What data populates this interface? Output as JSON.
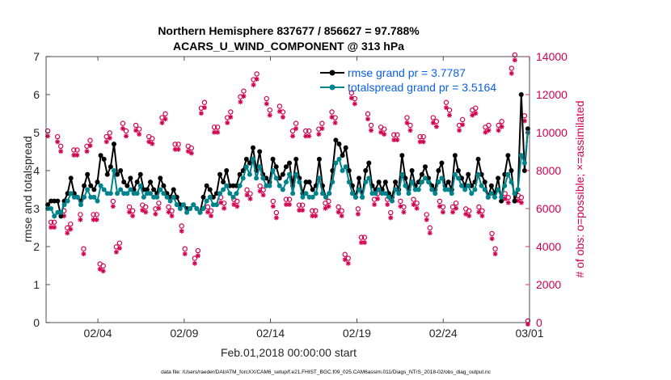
{
  "chart_data": {
    "type": "line",
    "title": [
      "Northern Hemisphere 837677 / 856627 = 97.788%",
      "ACARS_U_WIND_COMPONENT @ 313 hPa"
    ],
    "xlabel": "Feb.01,2018 00:00:00 start",
    "ylabel_left": "rmse and totalspread",
    "ylabel_right": "# of obs: o=possible; ×=assimilated",
    "footnote": "data file: /Users/raeder/DAI/ATM_forcXX/CAM6_setup/f.e21.FHIST_BGC.f09_025.CAM6assim.011/Diags_NTrS_2018-02/obs_diag_output.nc",
    "x_range": [
      1,
      29
    ],
    "x_ticks": [
      {
        "x": 4,
        "label": "02/04"
      },
      {
        "x": 9,
        "label": "02/09"
      },
      {
        "x": 14,
        "label": "02/14"
      },
      {
        "x": 19,
        "label": "02/19"
      },
      {
        "x": 24,
        "label": "02/24"
      },
      {
        "x": 29,
        "label": "03/01"
      }
    ],
    "y_left": {
      "range": [
        0,
        7
      ],
      "ticks": [
        "0",
        "1",
        "2",
        "3",
        "4",
        "5",
        "6",
        "7"
      ]
    },
    "y_right": {
      "range": [
        0,
        14000
      ],
      "ticks": [
        "0",
        "2000",
        "4000",
        "6000",
        "8000",
        "10000",
        "12000",
        "14000"
      ]
    },
    "series": [
      {
        "name": "rmse grand pr = 3.7787",
        "axis": "left",
        "color": "#000000",
        "marker": "filled-circle",
        "values": [
          3.1,
          3.2,
          3.2,
          3.2,
          2.8,
          3.2,
          3.4,
          3.8,
          3.4,
          3.3,
          3.2,
          3.6,
          3.9,
          3.6,
          3.5,
          3.7,
          4.4,
          4.3,
          3.9,
          4.1,
          4.7,
          3.9,
          4.0,
          3.7,
          3.6,
          3.8,
          3.5,
          3.7,
          3.9,
          3.5,
          3.5,
          3.7,
          3.5,
          3.4,
          3.8,
          3.6,
          3.4,
          3.3,
          3.5,
          3.3,
          3.1,
          3.1,
          3.0,
          3.0,
          3.1,
          3.0,
          2.9,
          3.3,
          3.6,
          3.5,
          3.3,
          3.4,
          3.9,
          3.7,
          4.0,
          3.6,
          3.6,
          3.6,
          3.9,
          4.0,
          4.3,
          4.2,
          4.6,
          4.0,
          4.5,
          3.9,
          3.8,
          3.7,
          4.3,
          4.1,
          3.8,
          3.9,
          4.1,
          4.2,
          3.6,
          4.3,
          3.8,
          3.4,
          3.7,
          3.7,
          3.5,
          3.6,
          4.3,
          3.6,
          3.3,
          3.4,
          4.0,
          4.8,
          4.7,
          4.4,
          4.6,
          4.0,
          3.6,
          3.3,
          3.8,
          3.3,
          4.0,
          4.2,
          3.6,
          3.5,
          3.7,
          3.5,
          3.7,
          3.4,
          3.3,
          3.7,
          3.5,
          4.4,
          3.8,
          3.5,
          4.0,
          3.6,
          3.7,
          3.9,
          4.1,
          3.8,
          3.6,
          3.5,
          4.0,
          4.2,
          3.6,
          3.7,
          3.5,
          4.4,
          4.0,
          3.8,
          3.6,
          3.9,
          3.6,
          3.7,
          4.3,
          3.9,
          3.7,
          3.3,
          3.6,
          3.4,
          3.8,
          3.2,
          3.9,
          4.4,
          4.0,
          3.2,
          3.5,
          6.0,
          4.0,
          5.1
        ]
      },
      {
        "name": "totalspread grand pr = 3.5164",
        "axis": "left",
        "color": "#00838b",
        "marker": "filled-circle",
        "values": [
          3.0,
          3.0,
          2.8,
          2.9,
          2.9,
          3.1,
          3.2,
          3.4,
          3.3,
          3.3,
          3.1,
          3.3,
          3.5,
          3.3,
          3.3,
          3.2,
          3.6,
          3.5,
          3.4,
          3.4,
          4.0,
          3.4,
          3.5,
          3.4,
          3.4,
          3.5,
          3.4,
          3.4,
          3.6,
          3.3,
          3.4,
          3.4,
          3.3,
          3.3,
          3.5,
          3.4,
          3.3,
          3.2,
          3.3,
          3.1,
          3.0,
          3.1,
          2.9,
          3.0,
          3.1,
          3.0,
          2.9,
          3.0,
          3.2,
          3.3,
          3.1,
          3.1,
          3.4,
          3.5,
          3.6,
          3.4,
          3.3,
          3.4,
          3.6,
          3.8,
          4.1,
          3.9,
          4.3,
          3.8,
          4.1,
          3.8,
          3.6,
          3.6,
          4.0,
          3.8,
          3.6,
          3.5,
          3.7,
          3.9,
          3.4,
          3.9,
          3.7,
          3.3,
          3.4,
          3.3,
          3.3,
          3.4,
          3.8,
          3.4,
          3.3,
          3.4,
          3.7,
          4.2,
          4.3,
          4.0,
          4.1,
          3.7,
          3.4,
          3.3,
          3.5,
          3.3,
          3.7,
          3.8,
          3.4,
          3.4,
          3.5,
          3.4,
          3.4,
          3.3,
          3.2,
          3.5,
          3.4,
          3.9,
          3.6,
          3.4,
          3.7,
          3.5,
          3.5,
          3.7,
          3.8,
          3.7,
          3.5,
          3.4,
          3.7,
          3.8,
          3.5,
          3.5,
          3.4,
          3.9,
          3.8,
          3.6,
          3.5,
          3.6,
          3.4,
          3.5,
          3.9,
          3.6,
          3.5,
          3.3,
          3.4,
          3.3,
          3.5,
          3.3,
          3.6,
          3.9,
          3.7,
          3.4,
          3.5,
          4.4,
          4.2,
          5.0
        ]
      },
      {
        "name": "# of obs possible",
        "axis": "right",
        "color": "#d1004f",
        "marker": "open-circle",
        "values": [
          10000,
          5200,
          5200,
          9700,
          9200,
          5800,
          4900,
          5100,
          9000,
          9000,
          5600,
          3800,
          9200,
          9500,
          5600,
          5600,
          3000,
          2900,
          9700,
          9900,
          6300,
          3900,
          4100,
          10400,
          10000,
          6000,
          5800,
          10300,
          10100,
          6100,
          6000,
          9700,
          9600,
          5900,
          6200,
          10700,
          10900,
          6000,
          5800,
          9300,
          9300,
          5000,
          3800,
          9200,
          9100,
          3300,
          3700,
          11200,
          11500,
          6000,
          5800,
          10200,
          10200,
          6500,
          6200,
          10700,
          11000,
          6400,
          6300,
          11800,
          12100,
          6900,
          6700,
          12700,
          13000,
          7100,
          6900,
          11700,
          11100,
          6300,
          5700,
          11300,
          11000,
          6400,
          6400,
          10000,
          10400,
          6100,
          6100,
          10000,
          10000,
          5800,
          5800,
          10100,
          10400,
          6200,
          6300,
          11000,
          10700,
          6000,
          5800,
          3500,
          3300,
          12000,
          11700,
          5900,
          4400,
          4400,
          10900,
          10300,
          6400,
          6700,
          10200,
          10100,
          6400,
          5700,
          9800,
          9800,
          6300,
          6000,
          10700,
          10300,
          6400,
          6200,
          9700,
          9700,
          5600,
          4900,
          10700,
          10500,
          6300,
          6000,
          11500,
          11100,
          6000,
          6200,
          10300,
          10600,
          5900,
          5800,
          11100,
          11200,
          6000,
          5800,
          10200,
          10300,
          4600,
          3800,
          10300,
          10500,
          6700,
          6500,
          13300,
          14000,
          6600,
          6500,
          10800,
          0
        ]
      },
      {
        "name": "# of obs assimilated",
        "axis": "right",
        "color": "#d1004f",
        "marker": "star",
        "values": [
          9900,
          5100,
          5100,
          9600,
          9100,
          5700,
          4800,
          5000,
          8900,
          8900,
          5500,
          3700,
          9100,
          9400,
          5500,
          5500,
          2900,
          2800,
          9600,
          9800,
          6200,
          3800,
          4000,
          10300,
          9900,
          5900,
          5700,
          10200,
          10000,
          6000,
          5900,
          9600,
          9500,
          5800,
          6100,
          10600,
          10800,
          5900,
          5700,
          9200,
          9200,
          4900,
          3700,
          9100,
          9000,
          3200,
          3600,
          11100,
          11400,
          5900,
          5700,
          10100,
          10100,
          6400,
          6100,
          10600,
          10900,
          6300,
          6200,
          11700,
          12000,
          6800,
          6600,
          12600,
          12900,
          7000,
          6800,
          11600,
          11000,
          6200,
          5600,
          11200,
          10900,
          6300,
          6300,
          9900,
          10300,
          6000,
          6000,
          9900,
          9900,
          5700,
          5700,
          10000,
          10300,
          6100,
          6200,
          10900,
          10600,
          5900,
          5700,
          3400,
          3200,
          11900,
          11600,
          5800,
          4300,
          4300,
          10800,
          10200,
          6300,
          6600,
          10100,
          10000,
          6300,
          5600,
          9700,
          9700,
          6200,
          5900,
          10600,
          10200,
          6300,
          6100,
          9600,
          9600,
          5500,
          4800,
          10600,
          10400,
          6200,
          5900,
          11400,
          11000,
          5900,
          6100,
          10200,
          10500,
          5800,
          5700,
          11000,
          11100,
          5900,
          5700,
          10100,
          10200,
          4500,
          3700,
          10200,
          10400,
          6600,
          6400,
          13200,
          13900,
          6500,
          6400,
          10700,
          0
        ]
      }
    ]
  }
}
